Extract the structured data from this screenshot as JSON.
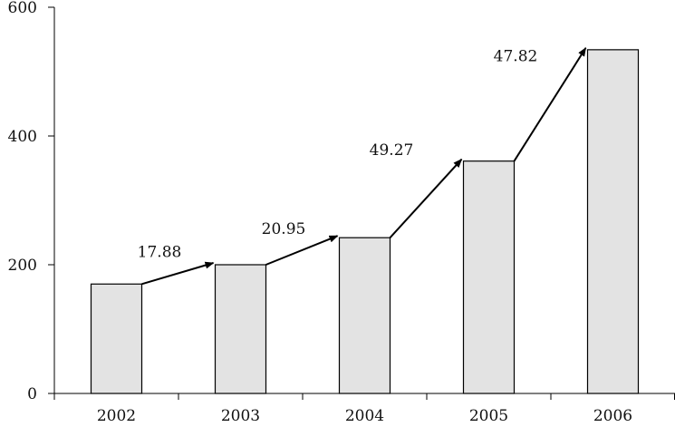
{
  "chart_data": {
    "type": "bar",
    "categories": [
      "2002",
      "2003",
      "2004",
      "2005",
      "2006"
    ],
    "values": [
      170,
      200,
      242,
      361,
      534
    ],
    "ylim": [
      0,
      600
    ],
    "yticks": [
      0,
      200,
      400,
      600
    ],
    "grid": false,
    "bar_fill": "#e3e3e3",
    "bar_stroke": "#000000",
    "growth_arrows": [
      {
        "from": "2002",
        "to": "2003",
        "label": "17.88"
      },
      {
        "from": "2003",
        "to": "2004",
        "label": "20.95"
      },
      {
        "from": "2004",
        "to": "2005",
        "label": "49.27"
      },
      {
        "from": "2005",
        "to": "2006",
        "label": "47.82"
      }
    ]
  }
}
